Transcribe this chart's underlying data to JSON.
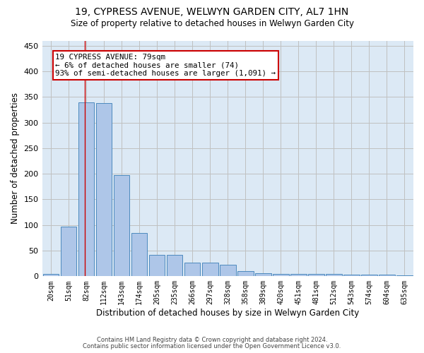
{
  "title": "19, CYPRESS AVENUE, WELWYN GARDEN CITY, AL7 1HN",
  "subtitle": "Size of property relative to detached houses in Welwyn Garden City",
  "xlabel": "Distribution of detached houses by size in Welwyn Garden City",
  "ylabel": "Number of detached properties",
  "footnote1": "Contains HM Land Registry data © Crown copyright and database right 2024.",
  "footnote2": "Contains public sector information licensed under the Open Government Licence v3.0.",
  "categories": [
    "20sqm",
    "51sqm",
    "82sqm",
    "112sqm",
    "143sqm",
    "174sqm",
    "205sqm",
    "235sqm",
    "266sqm",
    "297sqm",
    "328sqm",
    "358sqm",
    "389sqm",
    "420sqm",
    "451sqm",
    "481sqm",
    "512sqm",
    "543sqm",
    "574sqm",
    "604sqm",
    "635sqm"
  ],
  "values": [
    5,
    97,
    340,
    338,
    197,
    84,
    42,
    42,
    26,
    26,
    23,
    10,
    6,
    5,
    4,
    4,
    5,
    3,
    3,
    3,
    2
  ],
  "bar_color": "#aec6e8",
  "bar_edge_color": "#4d8abe",
  "background_color": "#ffffff",
  "plot_bg_color": "#dce9f5",
  "grid_color": "#c0c0c0",
  "annotation_text": "19 CYPRESS AVENUE: 79sqm\n← 6% of detached houses are smaller (74)\n93% of semi-detached houses are larger (1,091) →",
  "annotation_box_edge_color": "#cc0000",
  "ylim": [
    0,
    460
  ],
  "yticks": [
    0,
    50,
    100,
    150,
    200,
    250,
    300,
    350,
    400,
    450
  ]
}
